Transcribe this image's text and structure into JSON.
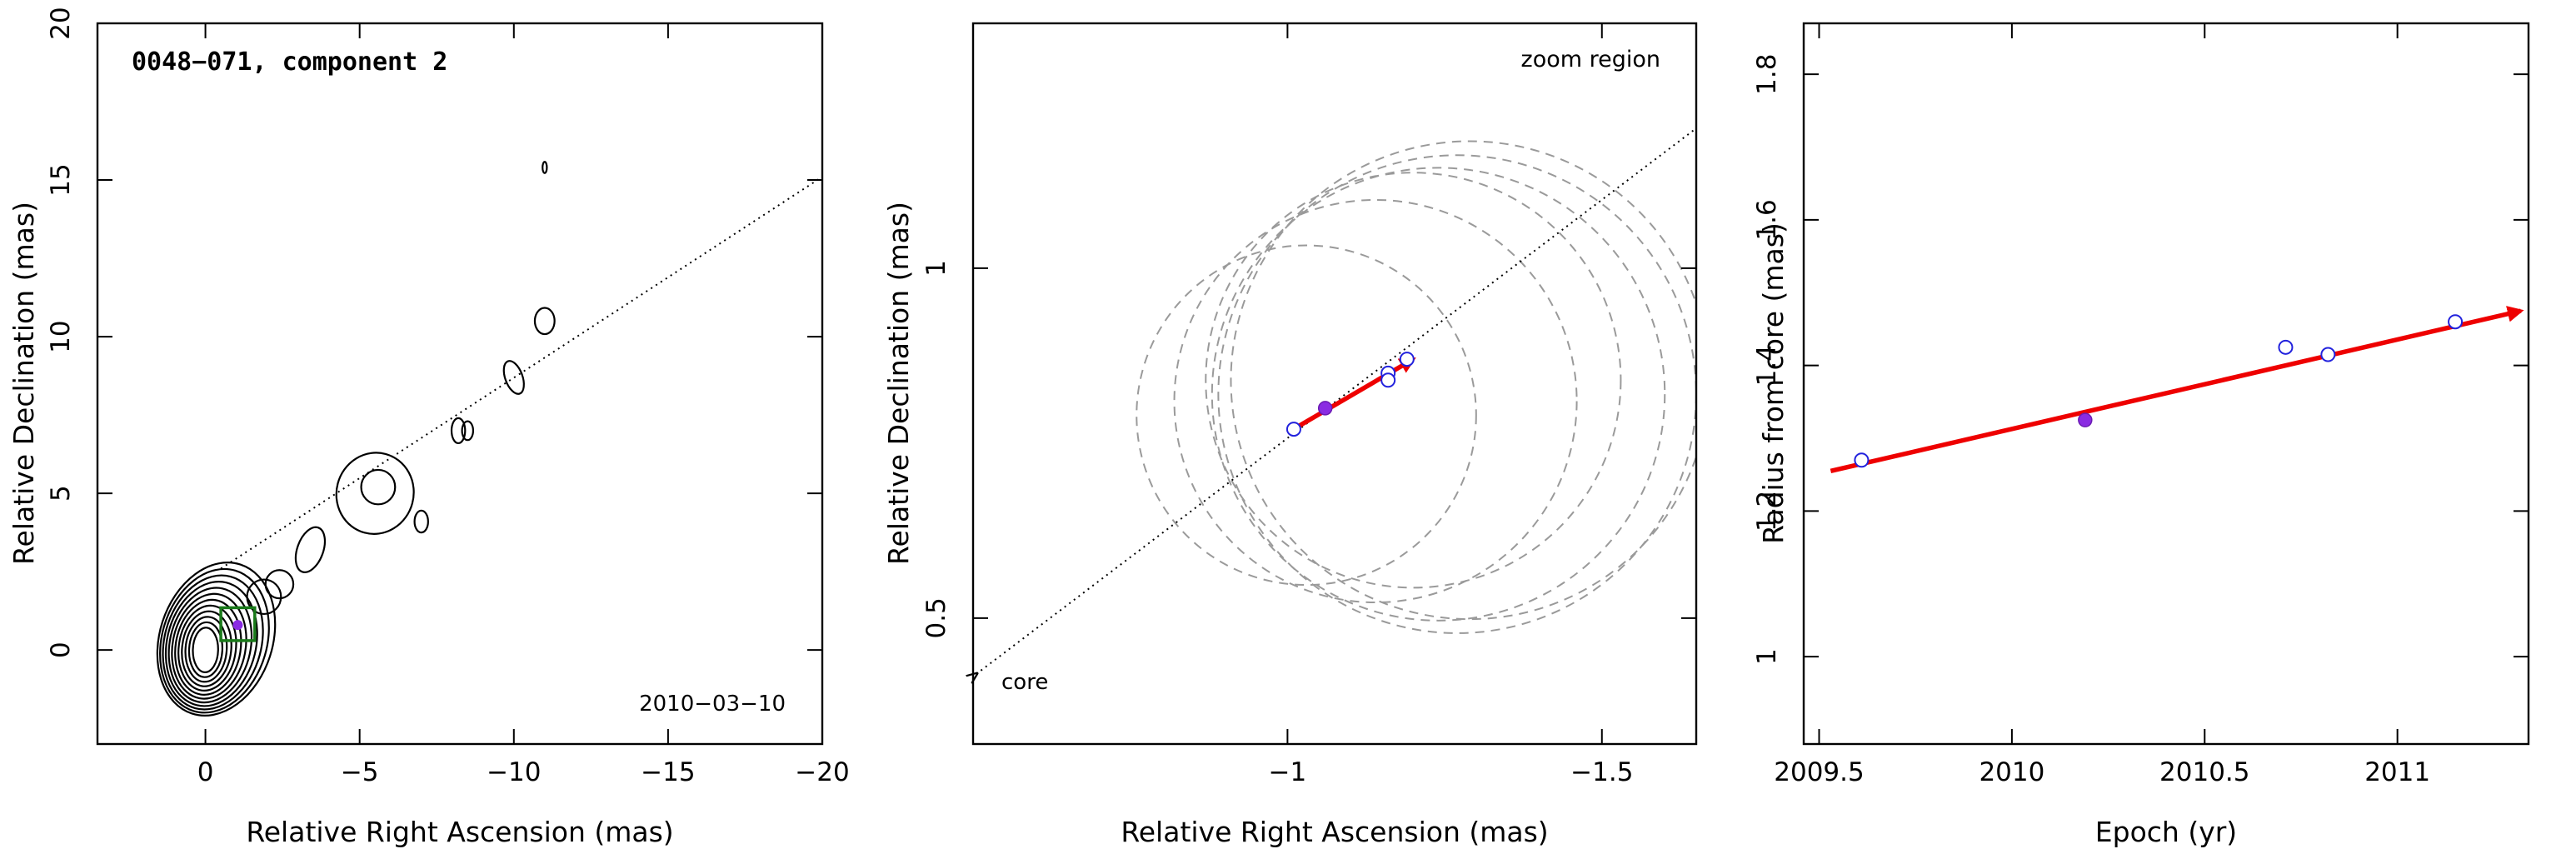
{
  "chart_data": [
    {
      "type": "contour",
      "title": "0048−071, component 2",
      "date_label": "2010−03−10",
      "xlabel": "Relative Right Ascension (mas)",
      "ylabel": "Relative Declination (mas)",
      "xlim": [
        3.5,
        -20
      ],
      "ylim": [
        -3,
        20
      ],
      "xticks": [
        0,
        -5,
        -10,
        -15,
        -20
      ],
      "yticks": [
        0,
        5,
        10,
        15,
        20
      ],
      "xtick_labels": [
        "0",
        "−5",
        "−10",
        "−15",
        "−20"
      ],
      "ytick_labels": [
        "0",
        "5",
        "10",
        "15",
        "20"
      ],
      "component_position": {
        "x": -1.05,
        "y": 0.8
      },
      "zoom_box": {
        "x": [
          -0.5,
          -1.6
        ],
        "y": [
          0.3,
          1.35
        ]
      },
      "trajectory_line": {
        "x": [
          -0.5,
          -20
        ],
        "y": [
          2.6,
          15.1
        ]
      },
      "contour_centers": [
        {
          "x": 0,
          "y": 0
        },
        {
          "x": -3.4,
          "y": 3.2
        },
        {
          "x": -5.5,
          "y": 5.0
        },
        {
          "x": -7.0,
          "y": 4.1
        },
        {
          "x": -8.2,
          "y": 7.0
        },
        {
          "x": -10.0,
          "y": 8.7
        },
        {
          "x": -11.0,
          "y": 10.5
        },
        {
          "x": -11.0,
          "y": 15.4
        }
      ]
    },
    {
      "type": "scatter",
      "title": "",
      "region_label": "zoom region",
      "core_label": "core",
      "xlabel": "Relative Right Ascension (mas)",
      "ylabel": "Relative Declination (mas)",
      "xlim": [
        -0.5,
        -1.65
      ],
      "ylim": [
        0.32,
        1.35
      ],
      "xticks": [
        -1,
        -1.5
      ],
      "yticks": [
        0.5,
        1
      ],
      "xtick_labels": [
        "−1",
        "−1.5"
      ],
      "ytick_labels": [
        "0.5",
        "1"
      ],
      "series": [
        {
          "marker": "open-circle",
          "x": [
            -1.01,
            -1.16,
            -1.16,
            -1.19
          ],
          "y": [
            0.77,
            0.85,
            0.84,
            0.87
          ]
        },
        {
          "marker": "filled-circle",
          "x": [
            -1.06
          ],
          "y": [
            0.8
          ]
        }
      ],
      "fit_arrow": {
        "x": [
          -1.0,
          -1.2
        ],
        "y": [
          0.765,
          0.87
        ]
      },
      "trajectory_line": {
        "x": [
          -0.5,
          -1.65
        ],
        "y": [
          0.42,
          1.2
        ]
      },
      "uncertainty_circles": [
        {
          "cx": -1.03,
          "cy": 0.79,
          "r": 0.27
        },
        {
          "cx": -1.14,
          "cy": 0.81,
          "r": 0.32
        },
        {
          "cx": -1.2,
          "cy": 0.84,
          "r": 0.33
        },
        {
          "cx": -1.24,
          "cy": 0.82,
          "r": 0.36
        },
        {
          "cx": -1.27,
          "cy": 0.82,
          "r": 0.38
        },
        {
          "cx": -1.29,
          "cy": 0.84,
          "r": 0.38
        }
      ]
    },
    {
      "type": "scatter",
      "title": "",
      "xlabel": "Epoch (yr)",
      "ylabel": "Radius from core (mas)",
      "xlim": [
        2009.46,
        2011.34
      ],
      "ylim": [
        0.88,
        1.87
      ],
      "xticks": [
        2009.5,
        2010,
        2010.5,
        2011
      ],
      "yticks": [
        1,
        1.2,
        1.4,
        1.6,
        1.8
      ],
      "xtick_labels": [
        "2009.5",
        "2010",
        "2010.5",
        "2011"
      ],
      "ytick_labels": [
        "1",
        "1.2",
        "1.4",
        "1.6",
        "1.8"
      ],
      "series": [
        {
          "marker": "open-circle",
          "x": [
            2009.61,
            2010.71,
            2010.82,
            2011.15
          ],
          "y": [
            1.27,
            1.425,
            1.415,
            1.46
          ]
        },
        {
          "marker": "filled-circle",
          "x": [
            2010.19
          ],
          "y": [
            1.325
          ]
        }
      ],
      "fit_arrow": {
        "x": [
          2009.53,
          2011.32
        ],
        "y": [
          1.255,
          1.475
        ]
      }
    }
  ]
}
